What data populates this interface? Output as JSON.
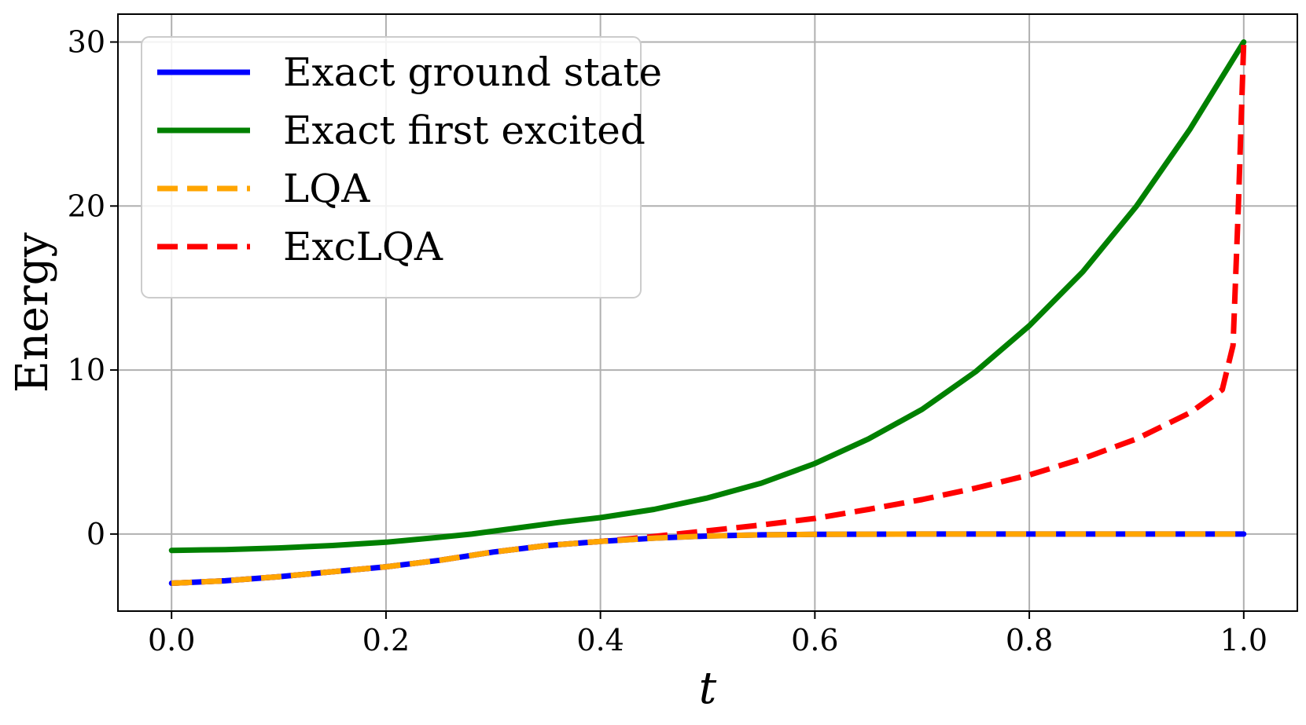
{
  "chart_data": {
    "type": "line",
    "title": "",
    "xlabel": "t",
    "ylabel": "Energy",
    "xlim": [
      -0.05,
      1.05
    ],
    "ylim": [
      -4.7,
      31.7
    ],
    "xticks": [
      0.0,
      0.2,
      0.4,
      0.6,
      0.8,
      1.0
    ],
    "xtick_labels": [
      "0.0",
      "0.2",
      "0.4",
      "0.6",
      "0.8",
      "1.0"
    ],
    "yticks": [
      0,
      10,
      20,
      30
    ],
    "ytick_labels": [
      "0",
      "10",
      "20",
      "30"
    ],
    "grid": true,
    "legend_position": "top-left",
    "series": [
      {
        "name": "Exact ground state",
        "color": "#0000ff",
        "style": "solid",
        "x": [
          0.0,
          0.05,
          0.1,
          0.15,
          0.2,
          0.25,
          0.3,
          0.35,
          0.4,
          0.45,
          0.5,
          0.55,
          0.6,
          0.7,
          0.8,
          0.9,
          1.0
        ],
        "y": [
          -3.0,
          -2.85,
          -2.6,
          -2.3,
          -2.0,
          -1.6,
          -1.1,
          -0.7,
          -0.45,
          -0.25,
          -0.12,
          -0.05,
          -0.02,
          0.0,
          0.0,
          0.0,
          0.0
        ]
      },
      {
        "name": "Exact first excited",
        "color": "#008000",
        "style": "solid",
        "x": [
          0.0,
          0.05,
          0.1,
          0.15,
          0.2,
          0.25,
          0.28,
          0.32,
          0.36,
          0.4,
          0.45,
          0.5,
          0.55,
          0.6,
          0.65,
          0.7,
          0.75,
          0.8,
          0.85,
          0.9,
          0.95,
          1.0
        ],
        "y": [
          -1.0,
          -0.95,
          -0.85,
          -0.7,
          -0.5,
          -0.2,
          0.0,
          0.35,
          0.7,
          1.0,
          1.5,
          2.2,
          3.1,
          4.3,
          5.8,
          7.6,
          9.9,
          12.7,
          16.0,
          20.0,
          24.7,
          30.0
        ]
      },
      {
        "name": "LQA",
        "color": "#ffa500",
        "style": "dashed",
        "x": [
          0.0,
          0.05,
          0.1,
          0.15,
          0.2,
          0.25,
          0.3,
          0.35,
          0.4,
          0.45,
          0.5,
          0.55,
          0.6,
          0.7,
          0.8,
          0.9,
          1.0
        ],
        "y": [
          -3.0,
          -2.85,
          -2.6,
          -2.3,
          -2.0,
          -1.6,
          -1.1,
          -0.7,
          -0.45,
          -0.25,
          -0.12,
          -0.05,
          -0.02,
          0.0,
          0.0,
          0.0,
          0.0
        ]
      },
      {
        "name": "ExcLQA",
        "color": "#ff0000",
        "style": "dashed",
        "x": [
          0.0,
          0.05,
          0.1,
          0.15,
          0.2,
          0.25,
          0.3,
          0.35,
          0.4,
          0.45,
          0.5,
          0.55,
          0.6,
          0.65,
          0.7,
          0.75,
          0.8,
          0.85,
          0.9,
          0.95,
          0.98,
          0.99,
          0.995,
          1.0
        ],
        "y": [
          -3.0,
          -2.85,
          -2.6,
          -2.3,
          -2.0,
          -1.6,
          -1.1,
          -0.7,
          -0.45,
          -0.15,
          0.2,
          0.55,
          0.95,
          1.5,
          2.1,
          2.8,
          3.6,
          4.6,
          5.8,
          7.4,
          8.8,
          11.5,
          20.0,
          30.0
        ]
      }
    ]
  }
}
